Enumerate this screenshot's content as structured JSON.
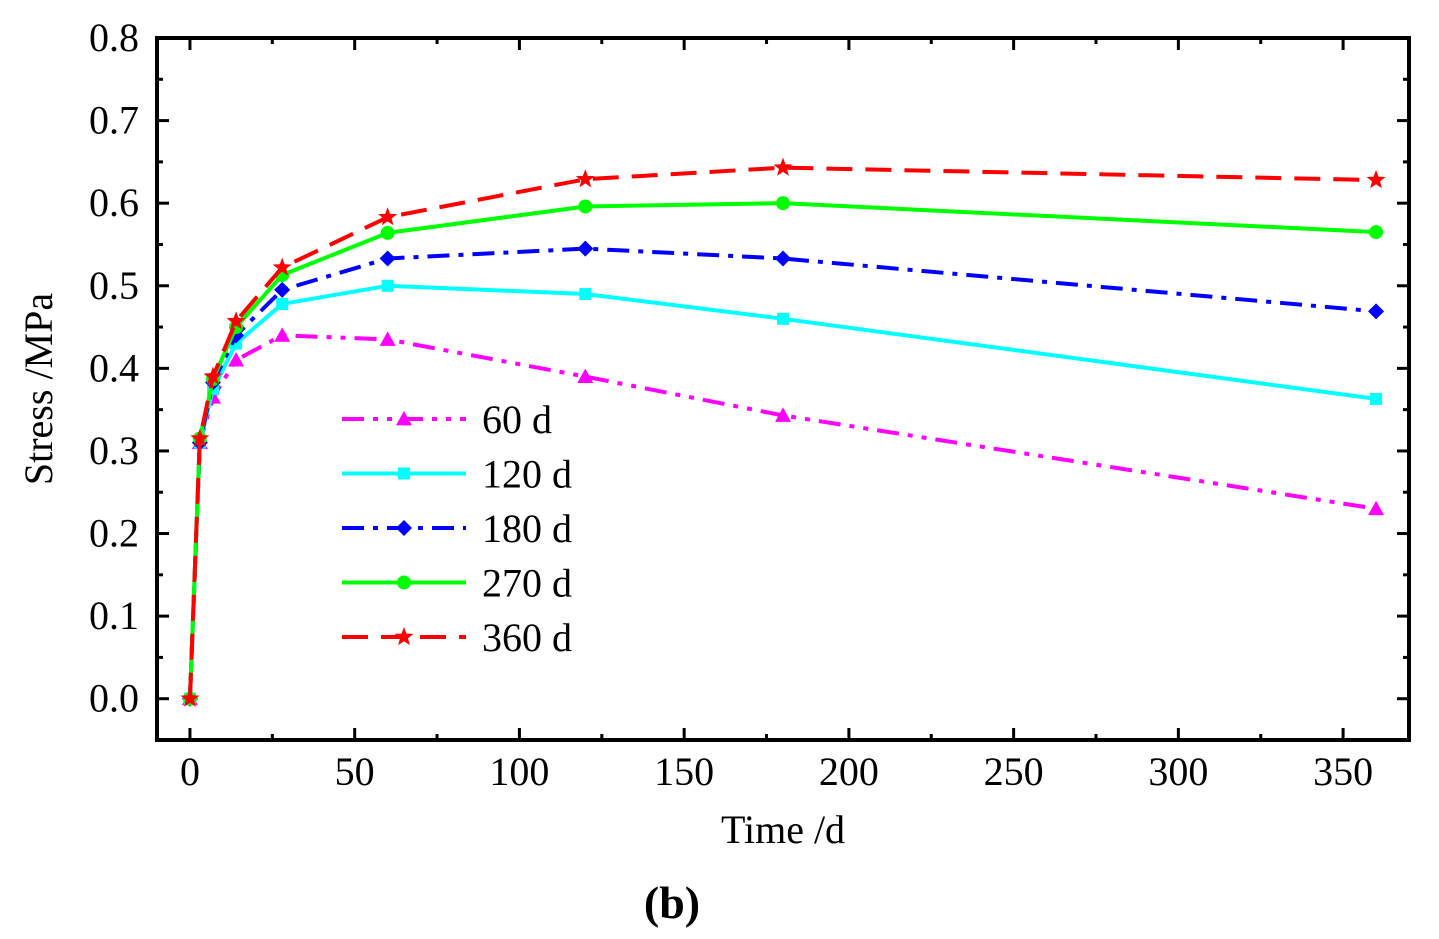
{
  "chart_data": {
    "type": "line",
    "title": "",
    "xlabel": "Time /d",
    "ylabel": "Stress /MPa",
    "xlim": [
      -10,
      370
    ],
    "ylim": [
      -0.05,
      0.8
    ],
    "xticks": [
      0,
      50,
      100,
      150,
      200,
      250,
      300,
      350
    ],
    "yticks": [
      0.0,
      0.1,
      0.2,
      0.3,
      0.4,
      0.5,
      0.6,
      0.7,
      0.8
    ],
    "xtick_labels": [
      "0",
      "50",
      "100",
      "150",
      "200",
      "250",
      "300",
      "350"
    ],
    "ytick_labels": [
      "0.0",
      "0.1",
      "0.2",
      "0.3",
      "0.4",
      "0.5",
      "0.6",
      "0.7",
      "0.8"
    ],
    "legend_position": "center-left",
    "panel_label": "(b)",
    "x": [
      0,
      3,
      7,
      14,
      28,
      60,
      120,
      180,
      360
    ],
    "series": [
      {
        "name": "60 d",
        "color": "#ff00ff",
        "marker": "triangle",
        "dash": "dashdotdot",
        "values": [
          0.0,
          0.31,
          0.365,
          0.41,
          0.44,
          0.435,
          0.39,
          0.343,
          0.23
        ]
      },
      {
        "name": "120 d",
        "color": "#00ffff",
        "marker": "square",
        "dash": "solid",
        "values": [
          0.0,
          0.31,
          0.375,
          0.43,
          0.478,
          0.5,
          0.49,
          0.46,
          0.363
        ]
      },
      {
        "name": "180 d",
        "color": "#0000ff",
        "marker": "diamond",
        "dash": "dashdot",
        "values": [
          0.0,
          0.31,
          0.383,
          0.44,
          0.495,
          0.533,
          0.545,
          0.533,
          0.469
        ]
      },
      {
        "name": "270 d",
        "color": "#00ff00",
        "marker": "circle",
        "dash": "solid",
        "values": [
          0.0,
          0.315,
          0.387,
          0.45,
          0.513,
          0.564,
          0.596,
          0.6,
          0.565
        ]
      },
      {
        "name": "360 d",
        "color": "#ff0000",
        "marker": "star",
        "dash": "dash",
        "values": [
          0.0,
          0.315,
          0.39,
          0.457,
          0.522,
          0.583,
          0.629,
          0.643,
          0.628
        ]
      }
    ]
  }
}
